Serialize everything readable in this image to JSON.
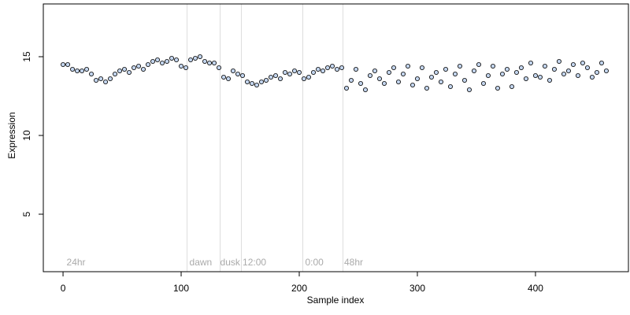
{
  "chart_data": {
    "type": "scatter",
    "xlabel": "Sample index",
    "ylabel": "Expression",
    "x": [
      0,
      4,
      8,
      12,
      16,
      20,
      24,
      28,
      32,
      36,
      40,
      44,
      48,
      52,
      56,
      60,
      64,
      68,
      72,
      76,
      80,
      84,
      88,
      92,
      96,
      100,
      104,
      108,
      112,
      116,
      120,
      124,
      128,
      132,
      136,
      140,
      144,
      148,
      152,
      156,
      160,
      164,
      168,
      172,
      176,
      180,
      184,
      188,
      192,
      196,
      200,
      204,
      208,
      212,
      216,
      220,
      224,
      228,
      232,
      236,
      240,
      244,
      248,
      252,
      256,
      260,
      264,
      268,
      272,
      276,
      280,
      284,
      288,
      292,
      296,
      300,
      304,
      308,
      312,
      316,
      320,
      324,
      328,
      332,
      336,
      340,
      344,
      348,
      352,
      356,
      360,
      364,
      368,
      372,
      376,
      380,
      384,
      388,
      392,
      396,
      400,
      404,
      408,
      412,
      416,
      420,
      424,
      428,
      432,
      436,
      440,
      444,
      448,
      452,
      456,
      460
    ],
    "values": [
      14.5,
      14.5,
      14.2,
      14.1,
      14.1,
      14.2,
      13.9,
      13.5,
      13.6,
      13.4,
      13.6,
      13.9,
      14.1,
      14.2,
      14.0,
      14.3,
      14.4,
      14.2,
      14.5,
      14.7,
      14.8,
      14.6,
      14.7,
      14.9,
      14.8,
      14.4,
      14.3,
      14.8,
      14.9,
      15.0,
      14.7,
      14.6,
      14.6,
      14.3,
      13.7,
      13.6,
      14.1,
      13.9,
      13.8,
      13.4,
      13.3,
      13.2,
      13.4,
      13.5,
      13.7,
      13.8,
      13.6,
      14.0,
      13.9,
      14.1,
      14.0,
      13.6,
      13.7,
      14.0,
      14.2,
      14.1,
      14.3,
      14.4,
      14.2,
      14.3,
      13.0,
      13.5,
      14.2,
      13.3,
      12.9,
      13.8,
      14.1,
      13.6,
      13.3,
      14.0,
      14.3,
      13.4,
      13.9,
      14.4,
      13.2,
      13.6,
      14.3,
      13.0,
      13.7,
      14.0,
      13.4,
      14.2,
      13.1,
      13.9,
      14.4,
      13.5,
      12.9,
      14.1,
      14.5,
      13.3,
      13.8,
      14.4,
      13.0,
      13.9,
      14.2,
      13.1,
      14.0,
      14.3,
      13.6,
      14.6,
      13.8,
      13.7,
      14.4,
      13.5,
      14.2,
      14.7,
      13.9,
      14.1,
      14.5,
      13.8,
      14.6,
      14.3,
      13.7,
      14.0,
      14.6,
      14.1
    ],
    "marker_fill": "#c3d5ee",
    "marker_edge": "#000000",
    "vlines": [
      105,
      133,
      151,
      203,
      237
    ],
    "vline_color": "#dddddd",
    "annotations": [
      {
        "text": "24hr",
        "x": 3,
        "y": 1.9
      },
      {
        "text": "dawn",
        "x": 107,
        "y": 1.9
      },
      {
        "text": "dusk",
        "x": 133,
        "y": 1.9
      },
      {
        "text": "12:00",
        "x": 152,
        "y": 1.9
      },
      {
        "text": "0:00",
        "x": 205,
        "y": 1.9
      },
      {
        "text": "48hr",
        "x": 238,
        "y": 1.9
      }
    ],
    "xlim": [
      -16.7,
      478.7
    ],
    "ylim": [
      1.35,
      18.35
    ],
    "xticks": [
      0,
      100,
      200,
      300,
      400
    ],
    "yticks": [
      5,
      10,
      15
    ]
  }
}
